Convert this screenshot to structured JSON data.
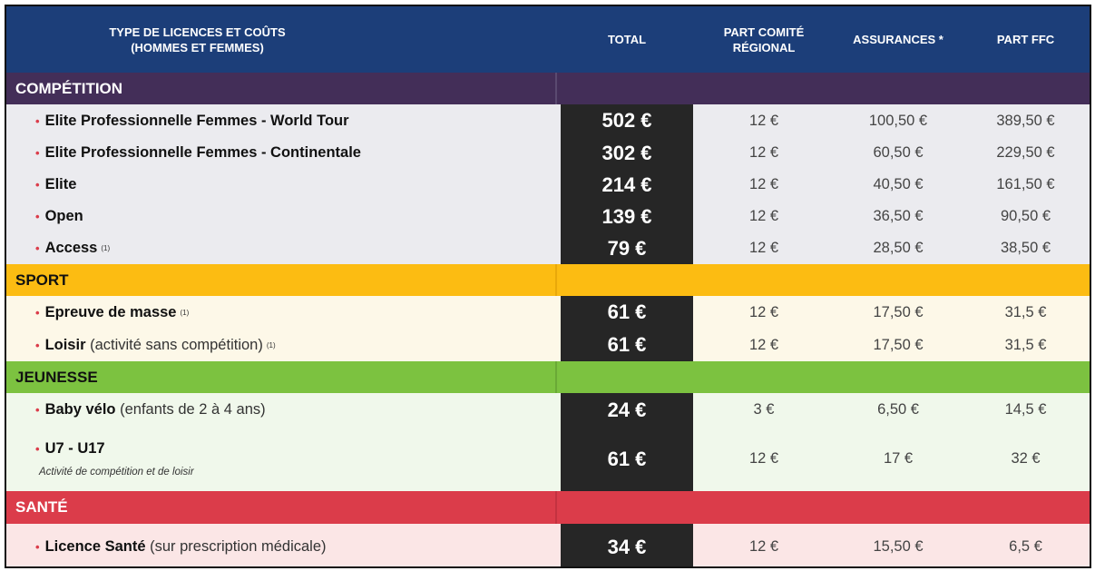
{
  "header": {
    "type_line1": "TYPE DE LICENCES ET COÛTS",
    "type_line2": "(HOMMES ET FEMMES)",
    "total": "TOTAL",
    "comite_line1": "PART COMITÉ",
    "comite_line2": "RÉGIONAL",
    "assurances": "ASSURANCES *",
    "ffc": "PART FFC"
  },
  "sections": {
    "competition": "COMPÉTITION",
    "sport": "SPORT",
    "jeunesse": "JEUNESSE",
    "sante": "SANTÉ"
  },
  "rows": {
    "world_tour": {
      "name": "Elite Professionnelle Femmes - World Tour",
      "total": "502 €",
      "comite": "12 €",
      "assurances": "100,50 €",
      "ffc": "389,50 €"
    },
    "continentale": {
      "name": "Elite Professionnelle Femmes - Continentale",
      "total": "302 €",
      "comite": "12 €",
      "assurances": "60,50 €",
      "ffc": "229,50 €"
    },
    "elite": {
      "name": "Elite",
      "total": "214 €",
      "comite": "12 €",
      "assurances": "40,50 €",
      "ffc": "161,50 €"
    },
    "open": {
      "name": "Open",
      "total": "139 €",
      "comite": "12 €",
      "assurances": "36,50 €",
      "ffc": "90,50 €"
    },
    "access": {
      "name": "Access",
      "note": "(1)",
      "total": "79 €",
      "comite": "12 €",
      "assurances": "28,50 €",
      "ffc": "38,50 €"
    },
    "masse": {
      "name": "Epreuve de masse",
      "note": "(1)",
      "total": "61 €",
      "comite": "12 €",
      "assurances": "17,50 €",
      "ffc": "31,5 €"
    },
    "loisir": {
      "name": "Loisir",
      "detail": "(activité sans compétition)",
      "note": "(1)",
      "total": "61 €",
      "comite": "12 €",
      "assurances": "17,50 €",
      "ffc": "31,5 €"
    },
    "baby": {
      "name": "Baby vélo",
      "detail": "(enfants de 2 à 4 ans)",
      "total": "24 €",
      "comite": "3 €",
      "assurances": "6,50 €",
      "ffc": "14,5 €"
    },
    "u7": {
      "name": "U7 - U17",
      "sub": "Activité de compétition et de loisir",
      "total": "61 €",
      "comite": "12 €",
      "assurances": "17 €",
      "ffc": "32 €"
    },
    "sante": {
      "name": "Licence Santé",
      "detail": "(sur prescription médicale)",
      "total": "34 €",
      "comite": "12 €",
      "assurances": "15,50 €",
      "ffc": "6,5 €"
    }
  },
  "bullet": "•",
  "colors": {
    "header": "#1c3e79",
    "competition": "#432e58",
    "sport": "#fcbc12",
    "jeunesse": "#7cc240",
    "sante": "#db3c4a",
    "total_cell": "#262626",
    "bullet": "#db3c4a"
  }
}
